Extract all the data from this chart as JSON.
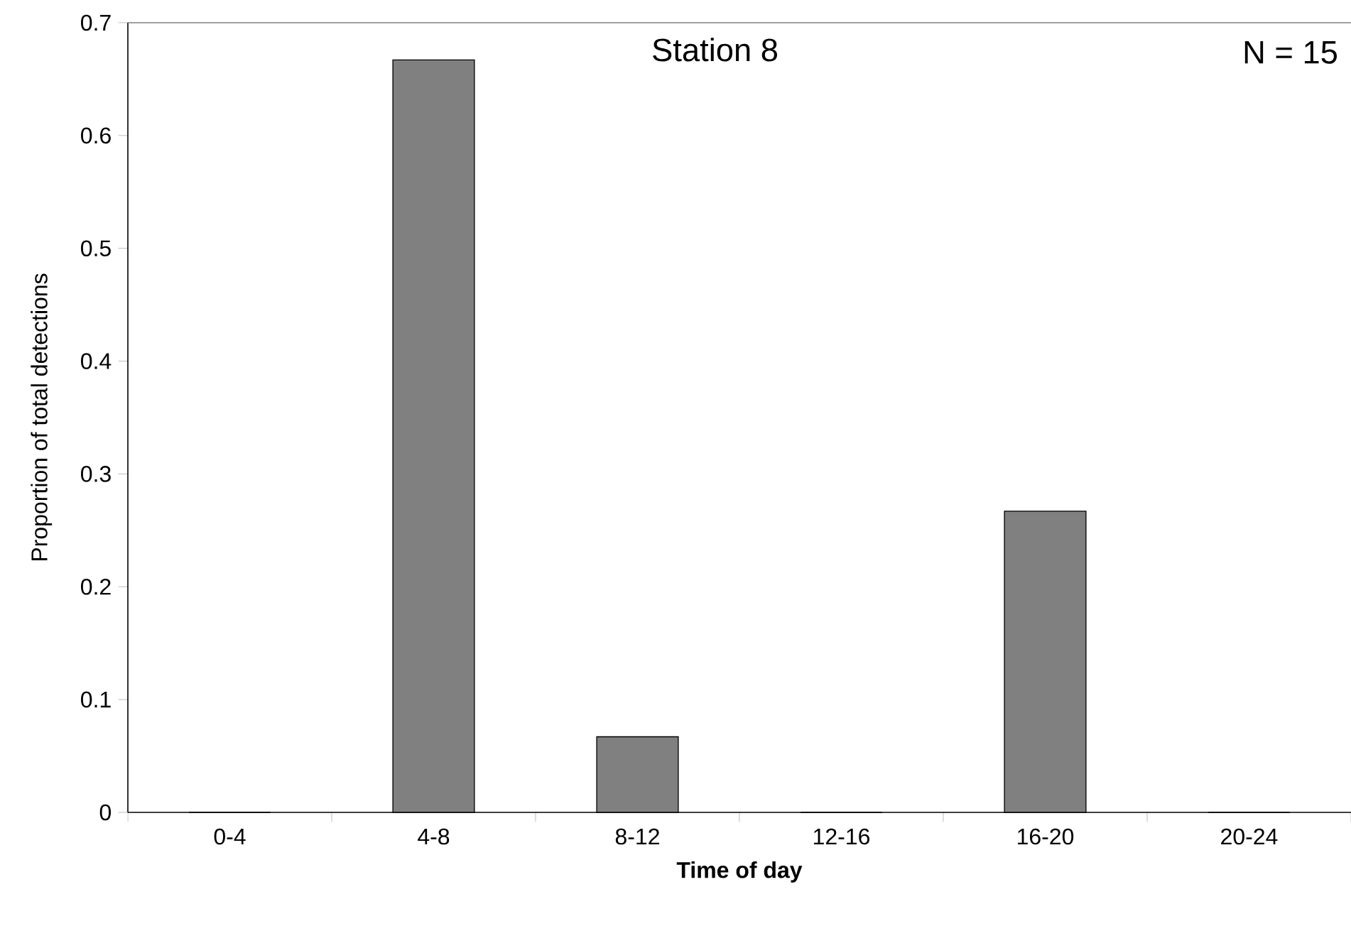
{
  "chart_data": {
    "type": "bar",
    "title": "Station 8",
    "xlabel": "Time of day",
    "ylabel": "Proportion of total detections",
    "annotations": [
      "N = 15"
    ],
    "categories": [
      "0-4",
      "4-8",
      "8-12",
      "12-16",
      "16-20",
      "20-24"
    ],
    "values": [
      0,
      0.667,
      0.067,
      0,
      0.267,
      0
    ],
    "color": "#808080",
    "ylim": [
      0,
      0.7
    ],
    "yticks": [
      0,
      0.1,
      0.2,
      0.3,
      0.4,
      0.5,
      0.6,
      0.7
    ]
  }
}
